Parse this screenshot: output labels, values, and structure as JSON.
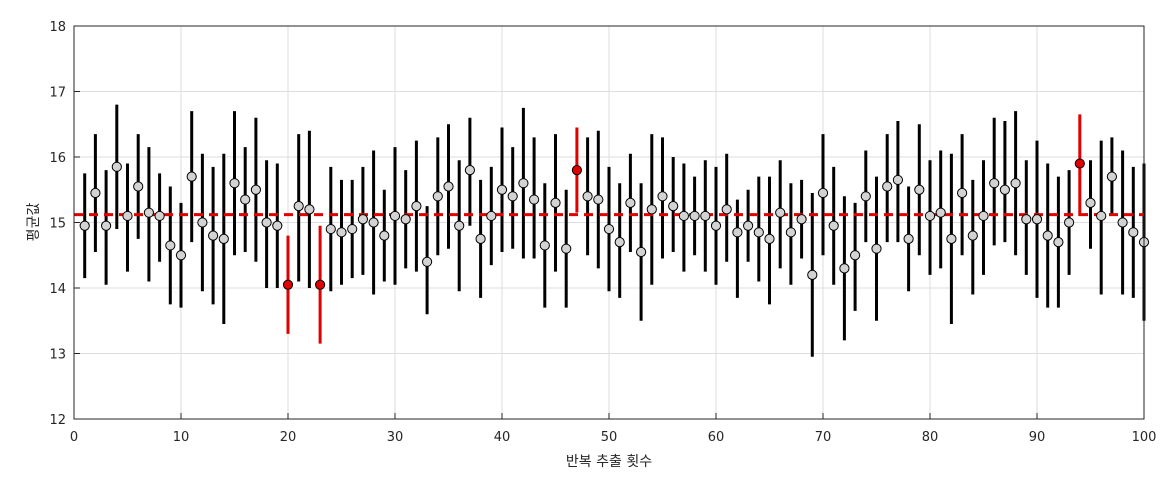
{
  "chart_data": {
    "type": "scatter",
    "title": "",
    "xlabel": "반복 추출 횟수",
    "ylabel": "평균값",
    "xlim": [
      0,
      100
    ],
    "ylim": [
      12,
      18
    ],
    "xticks": [
      0,
      10,
      20,
      30,
      40,
      50,
      60,
      70,
      80,
      90,
      100
    ],
    "yticks": [
      12,
      13,
      14,
      15,
      16,
      17,
      18
    ],
    "grid": true,
    "reference_line": {
      "y": 15.12,
      "style": "dashed",
      "color": "#e00000"
    },
    "colors": {
      "normal_marker": "#d3d3d3",
      "normal_bar": "#000000",
      "highlight_marker": "#e00000",
      "highlight_bar": "#e00000"
    },
    "series": [
      {
        "x": [
          1,
          2,
          3,
          4,
          5,
          6,
          7,
          8,
          9,
          10,
          11,
          12,
          13,
          14,
          15,
          16,
          17,
          18,
          19,
          20,
          21,
          22,
          23,
          24,
          25,
          26,
          27,
          28,
          29,
          30,
          31,
          32,
          33,
          34,
          35,
          36,
          37,
          38,
          39,
          40,
          41,
          42,
          43,
          44,
          45,
          46,
          47,
          48,
          49,
          50,
          51,
          52,
          53,
          54,
          55,
          56,
          57,
          58,
          59,
          60,
          61,
          62,
          63,
          64,
          65,
          66,
          67,
          68,
          69,
          70,
          71,
          72,
          73,
          74,
          75,
          76,
          77,
          78,
          79,
          80,
          81,
          82,
          83,
          84,
          85,
          86,
          87,
          88,
          89,
          90,
          91,
          92,
          93,
          94,
          95,
          96,
          97,
          98,
          99,
          100
        ],
        "mean": [
          14.95,
          15.45,
          14.95,
          15.85,
          15.1,
          15.55,
          15.15,
          15.1,
          14.65,
          14.5,
          15.7,
          15.0,
          14.8,
          14.75,
          15.6,
          15.35,
          15.5,
          15.0,
          14.95,
          14.05,
          15.25,
          15.2,
          14.05,
          14.9,
          14.85,
          14.9,
          15.05,
          15.0,
          14.8,
          15.1,
          15.05,
          15.25,
          14.4,
          15.4,
          15.55,
          14.95,
          15.8,
          14.75,
          15.1,
          15.5,
          15.4,
          15.6,
          15.35,
          14.65,
          15.3,
          14.6,
          15.8,
          15.4,
          15.35,
          14.9,
          14.7,
          15.3,
          14.55,
          15.2,
          15.4,
          15.25,
          15.1,
          15.1,
          15.1,
          14.95,
          15.2,
          14.85,
          14.95,
          14.85,
          14.75,
          15.15,
          14.85,
          15.05,
          14.2,
          15.45,
          14.95,
          14.3,
          14.5,
          15.4,
          14.6,
          15.55,
          15.65,
          14.75,
          15.5,
          15.1,
          15.15,
          14.75,
          15.45,
          14.8,
          15.1,
          15.6,
          15.5,
          15.6,
          15.05,
          15.05,
          14.8,
          14.7,
          15.0,
          15.9,
          15.3,
          15.1,
          15.7,
          15.0,
          14.85,
          14.7
        ],
        "lower": [
          14.15,
          14.55,
          14.05,
          14.9,
          14.25,
          14.75,
          14.1,
          14.4,
          13.75,
          13.7,
          14.7,
          13.95,
          13.75,
          13.45,
          14.5,
          14.55,
          14.4,
          14.0,
          14.0,
          13.3,
          14.1,
          14.0,
          13.15,
          13.95,
          14.05,
          14.15,
          14.2,
          13.9,
          14.1,
          14.05,
          14.3,
          14.25,
          13.6,
          14.5,
          14.6,
          13.95,
          14.95,
          13.85,
          14.35,
          14.55,
          14.6,
          14.45,
          14.45,
          13.7,
          14.25,
          13.7,
          15.15,
          14.5,
          14.3,
          13.95,
          13.85,
          14.55,
          13.5,
          14.05,
          14.45,
          14.55,
          14.25,
          14.5,
          14.25,
          14.05,
          14.4,
          13.85,
          14.4,
          14.1,
          13.75,
          14.3,
          14.05,
          14.45,
          12.95,
          14.5,
          14.05,
          13.2,
          13.65,
          14.7,
          13.5,
          14.7,
          14.7,
          13.95,
          14.5,
          14.2,
          14.3,
          13.45,
          14.5,
          13.9,
          14.2,
          14.65,
          14.7,
          14.5,
          14.2,
          13.85,
          13.7,
          13.7,
          14.2,
          15.1,
          14.6,
          13.9,
          15.1,
          13.9,
          13.85,
          13.5
        ],
        "upper": [
          15.75,
          16.35,
          15.8,
          16.8,
          15.9,
          16.35,
          16.15,
          15.75,
          15.55,
          15.3,
          16.7,
          16.05,
          15.85,
          16.05,
          16.7,
          16.15,
          16.6,
          15.95,
          15.9,
          14.8,
          16.35,
          16.4,
          14.95,
          15.85,
          15.65,
          15.65,
          15.85,
          16.1,
          15.5,
          16.15,
          15.8,
          16.25,
          15.25,
          16.3,
          16.5,
          15.95,
          16.6,
          15.65,
          15.85,
          16.45,
          16.15,
          16.75,
          16.3,
          15.6,
          16.35,
          15.5,
          16.45,
          16.3,
          16.4,
          15.85,
          15.6,
          16.05,
          15.6,
          16.35,
          16.3,
          16.0,
          15.9,
          15.7,
          15.95,
          15.85,
          16.05,
          15.35,
          15.5,
          15.7,
          15.7,
          15.95,
          15.6,
          15.65,
          15.45,
          16.35,
          15.85,
          15.4,
          15.3,
          16.1,
          15.7,
          16.35,
          16.55,
          15.55,
          16.5,
          15.95,
          16.1,
          16.05,
          16.35,
          15.65,
          15.95,
          16.6,
          16.55,
          16.7,
          15.95,
          16.25,
          15.9,
          15.7,
          15.8,
          16.65,
          15.95,
          16.25,
          16.3,
          16.1,
          15.85,
          15.9
        ],
        "highlighted_x": [
          20,
          23,
          47,
          94
        ]
      }
    ]
  }
}
